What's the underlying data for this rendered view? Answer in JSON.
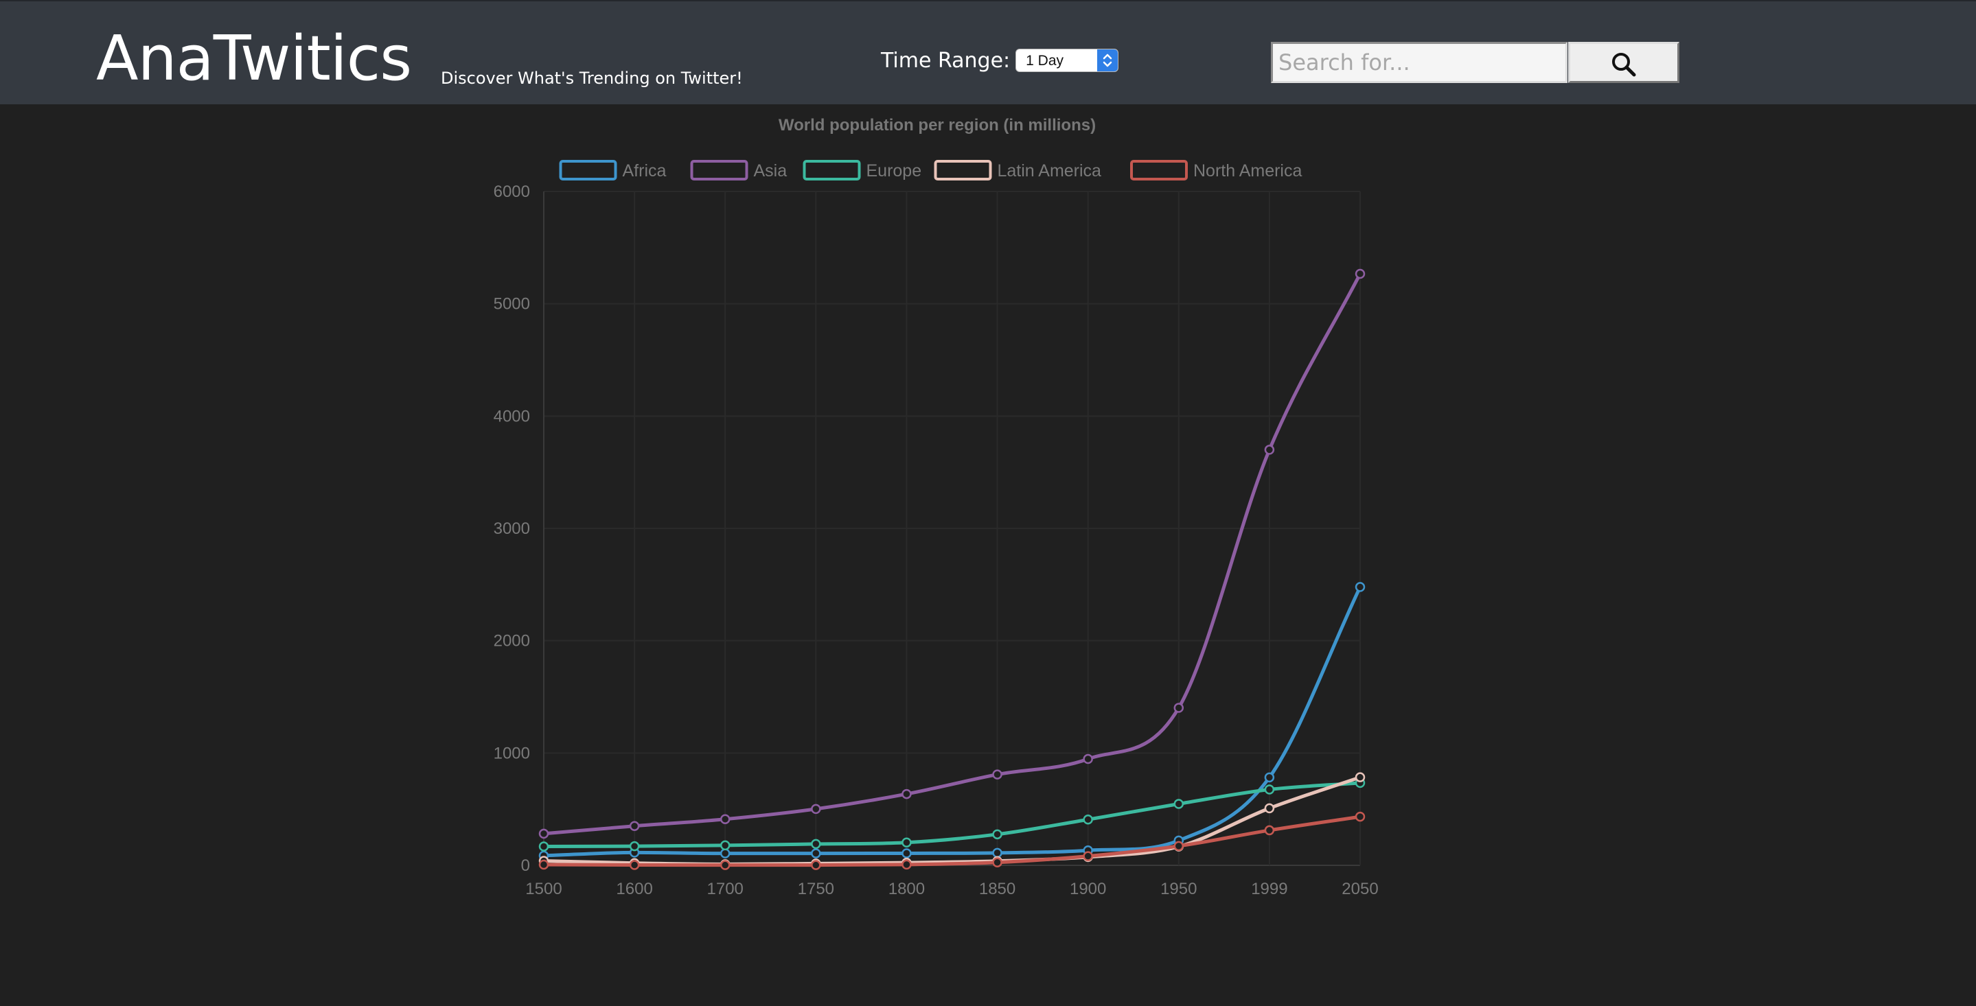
{
  "header": {
    "brand": "AnaTwitics",
    "tagline": "Discover What's Trending on Twitter!",
    "time_range_label": "Time Range:",
    "time_range_value": "1 Day",
    "search_placeholder": "Search for...",
    "search_icon": "search-icon"
  },
  "colors": {
    "header_bg": "#353a41",
    "page_bg": "#202020",
    "select_accent": "#2f7fe6"
  },
  "chart_data": {
    "type": "line",
    "title": "World population per region (in millions)",
    "xlabel": "",
    "ylabel": "",
    "categories": [
      "1500",
      "1600",
      "1700",
      "1750",
      "1800",
      "1850",
      "1900",
      "1950",
      "1999",
      "2050"
    ],
    "ylim": [
      0,
      6000
    ],
    "yticks": [
      "0",
      "1000",
      "2000",
      "3000",
      "4000",
      "5000",
      "6000"
    ],
    "grid": true,
    "legend": "top",
    "series": [
      {
        "name": "Africa",
        "color": "#3e95cd",
        "values": [
          86,
          114,
          106,
          106,
          107,
          111,
          133,
          221,
          783,
          2478
        ]
      },
      {
        "name": "Asia",
        "color": "#8e5ea2",
        "values": [
          282,
          350,
          411,
          502,
          635,
          809,
          947,
          1402,
          3700,
          5267
        ]
      },
      {
        "name": "Europe",
        "color": "#3cba9f",
        "values": [
          168,
          170,
          178,
          190,
          203,
          276,
          408,
          547,
          675,
          734
        ]
      },
      {
        "name": "Latin America",
        "color": "#e8c3b9",
        "values": [
          40,
          20,
          10,
          16,
          24,
          38,
          74,
          167,
          508,
          784
        ]
      },
      {
        "name": "North America",
        "color": "#c45850",
        "values": [
          6,
          3,
          2,
          2,
          7,
          26,
          82,
          172,
          312,
          433
        ]
      }
    ]
  }
}
